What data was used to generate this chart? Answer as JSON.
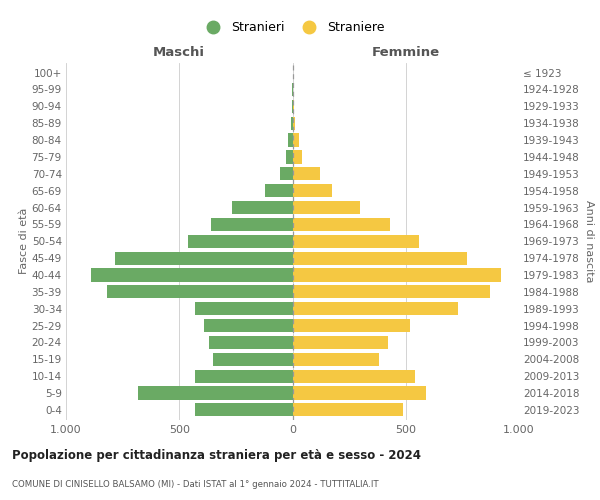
{
  "age_groups": [
    "0-4",
    "5-9",
    "10-14",
    "15-19",
    "20-24",
    "25-29",
    "30-34",
    "35-39",
    "40-44",
    "45-49",
    "50-54",
    "55-59",
    "60-64",
    "65-69",
    "70-74",
    "75-79",
    "80-84",
    "85-89",
    "90-94",
    "95-99",
    "100+"
  ],
  "birth_years": [
    "2019-2023",
    "2014-2018",
    "2009-2013",
    "2004-2008",
    "1999-2003",
    "1994-1998",
    "1989-1993",
    "1984-1988",
    "1979-1983",
    "1974-1978",
    "1969-1973",
    "1964-1968",
    "1959-1963",
    "1954-1958",
    "1949-1953",
    "1944-1948",
    "1939-1943",
    "1934-1938",
    "1929-1933",
    "1924-1928",
    "≤ 1923"
  ],
  "maschi": [
    430,
    680,
    430,
    350,
    370,
    390,
    430,
    820,
    890,
    785,
    460,
    360,
    265,
    120,
    55,
    30,
    20,
    5,
    3,
    1,
    0
  ],
  "femmine": [
    490,
    590,
    540,
    380,
    420,
    520,
    730,
    870,
    920,
    770,
    560,
    430,
    300,
    175,
    120,
    40,
    30,
    10,
    5,
    2,
    0
  ],
  "color_maschi": "#6aaa64",
  "color_femmine": "#f5c842",
  "title_main": "Popolazione per cittadinanza straniera per età e sesso - 2024",
  "title_sub": "COMUNE DI CINISELLO BALSAMO (MI) - Dati ISTAT al 1° gennaio 2024 - TUTTITALIA.IT",
  "ylabel_left": "Fasce di età",
  "ylabel_right": "Anni di nascita",
  "xlabel_left": "Maschi",
  "xlabel_right": "Femmine",
  "legend_maschi": "Stranieri",
  "legend_femmine": "Straniere",
  "xlim": 1000,
  "background_color": "#ffffff",
  "grid_color": "#cccccc"
}
